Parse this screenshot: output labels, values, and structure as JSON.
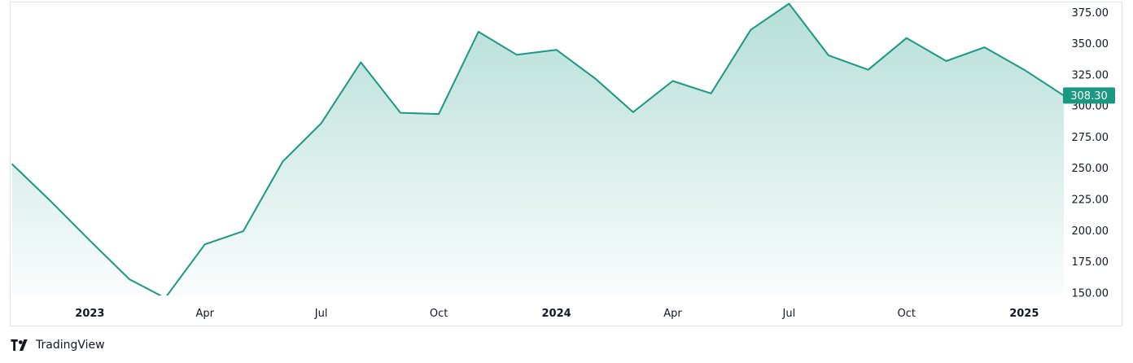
{
  "brand": {
    "name": "TradingView",
    "icon": "tradingview-logo-icon"
  },
  "colors": {
    "line": "#1a9882",
    "fill_top": "#1a9882",
    "price_tag": "#1a9882",
    "frame": "#e0e3eb"
  },
  "chart_data": {
    "type": "area",
    "title": "",
    "xlabel": "",
    "ylabel": "",
    "x_tick_labels": [
      {
        "label": "2023",
        "date": "2023-01-01",
        "bold": true
      },
      {
        "label": "Apr",
        "date": "2023-04-01",
        "bold": false
      },
      {
        "label": "Jul",
        "date": "2023-07-01",
        "bold": false
      },
      {
        "label": "Oct",
        "date": "2023-10-01",
        "bold": false
      },
      {
        "label": "2024",
        "date": "2024-01-01",
        "bold": true
      },
      {
        "label": "Apr",
        "date": "2024-04-01",
        "bold": false
      },
      {
        "label": "Jul",
        "date": "2024-07-01",
        "bold": false
      },
      {
        "label": "Oct",
        "date": "2024-10-01",
        "bold": false
      },
      {
        "label": "2025",
        "date": "2025-01-01",
        "bold": true
      }
    ],
    "y_tick_labels": [
      "375.00",
      "350.00",
      "325.00",
      "300.00",
      "275.00",
      "250.00",
      "225.00",
      "200.00",
      "175.00",
      "150.00"
    ],
    "ylim": [
      148,
      383
    ],
    "xlim": [
      "2022-10-31",
      "2025-02-01"
    ],
    "grid": false,
    "legend": "none",
    "last_value_label": "308.30",
    "series": [
      {
        "values": [
          {
            "x": "2022-11-01",
            "y": 253.5
          },
          {
            "x": "2022-12-01",
            "y": 224
          },
          {
            "x": "2023-01-01",
            "y": 192
          },
          {
            "x": "2023-02-01",
            "y": 161
          },
          {
            "x": "2023-03-01",
            "y": 146
          },
          {
            "x": "2023-04-01",
            "y": 189
          },
          {
            "x": "2023-05-01",
            "y": 199.5
          },
          {
            "x": "2023-06-01",
            "y": 255.5
          },
          {
            "x": "2023-07-01",
            "y": 286
          },
          {
            "x": "2023-08-01",
            "y": 335
          },
          {
            "x": "2023-09-01",
            "y": 294.5
          },
          {
            "x": "2023-10-01",
            "y": 293.5
          },
          {
            "x": "2023-11-01",
            "y": 359.5
          },
          {
            "x": "2023-12-01",
            "y": 341
          },
          {
            "x": "2024-01-01",
            "y": 345
          },
          {
            "x": "2024-02-01",
            "y": 321.5
          },
          {
            "x": "2024-03-01",
            "y": 295
          },
          {
            "x": "2024-04-01",
            "y": 320
          },
          {
            "x": "2024-05-01",
            "y": 310
          },
          {
            "x": "2024-06-01",
            "y": 361
          },
          {
            "x": "2024-07-01",
            "y": 382
          },
          {
            "x": "2024-08-01",
            "y": 340.5
          },
          {
            "x": "2024-09-01",
            "y": 329
          },
          {
            "x": "2024-10-01",
            "y": 354.5
          },
          {
            "x": "2024-11-01",
            "y": 336
          },
          {
            "x": "2024-12-01",
            "y": 347
          },
          {
            "x": "2025-01-01",
            "y": 329
          },
          {
            "x": "2025-02-01",
            "y": 308.3
          }
        ]
      }
    ]
  }
}
